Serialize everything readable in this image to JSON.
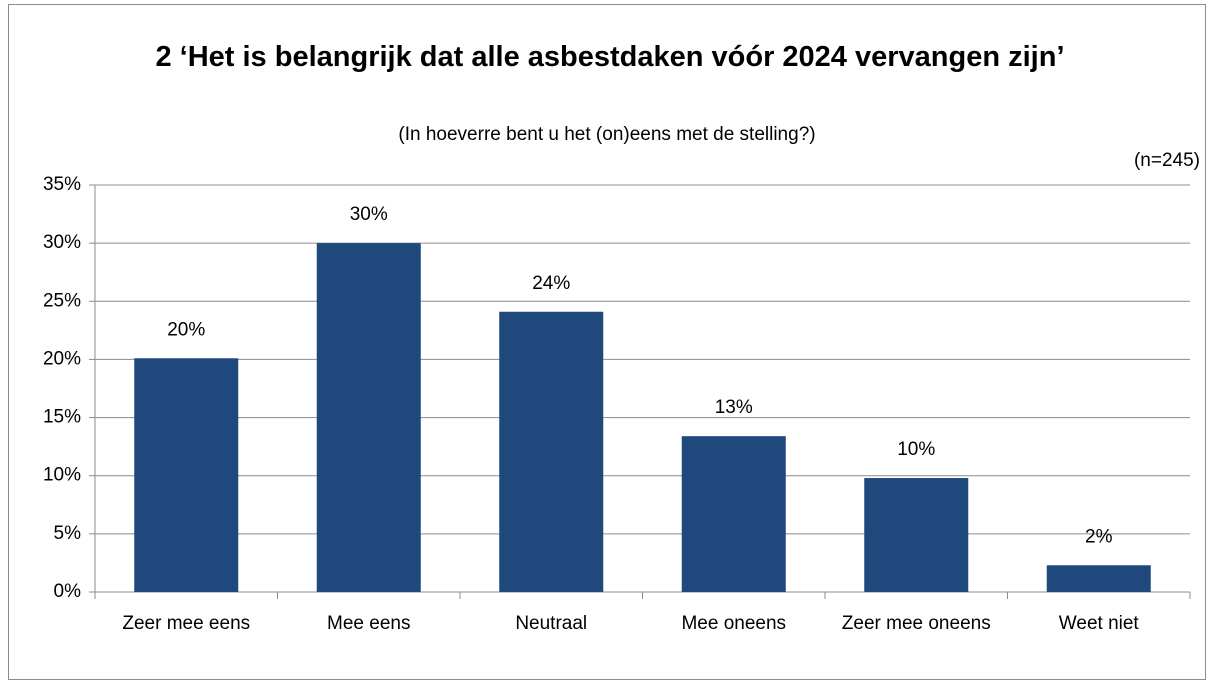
{
  "chart_data": {
    "type": "bar",
    "title": "2 ‘Het is belangrijk dat alle asbestdaken vóór 2024 vervangen zijn’",
    "subtitle": "(In hoeverre bent u het (on)eens met de stelling?)",
    "annotation": "(n=245)",
    "categories": [
      "Zeer mee eens",
      "Mee eens",
      "Neutraal",
      "Mee oneens",
      "Zeer mee oneens",
      "Weet niet"
    ],
    "values": [
      20.1,
      30,
      24.1,
      13.4,
      9.8,
      2.3
    ],
    "value_labels": [
      "20%",
      "30%",
      "24%",
      "13%",
      "10%",
      "2%"
    ],
    "color": "#1f497d",
    "ylim": [
      0,
      35
    ],
    "yticks": [
      {
        "value": 0,
        "label": "0%"
      },
      {
        "value": 5,
        "label": "5%"
      },
      {
        "value": 10,
        "label": "10%"
      },
      {
        "value": 15,
        "label": "15%"
      },
      {
        "value": 20,
        "label": "20%"
      },
      {
        "value": 25,
        "label": "25%"
      },
      {
        "value": 30,
        "label": "30%"
      },
      {
        "value": 35,
        "label": "35%"
      }
    ],
    "grid": true
  }
}
